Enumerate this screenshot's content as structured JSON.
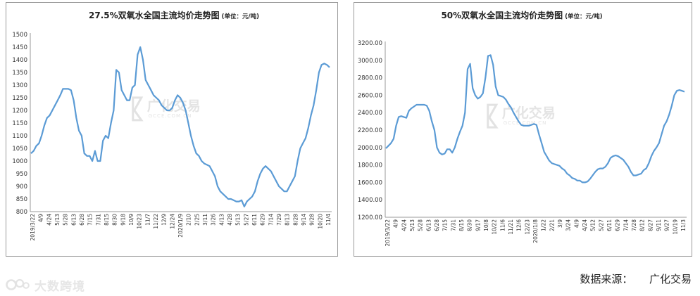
{
  "chart_data": [
    {
      "type": "line",
      "title": "27.5%双氧水全国主流均价走势图",
      "unit": "(单位：元/吨)",
      "color": "#5b9bd5",
      "ylim": [
        800,
        1500
      ],
      "yticks": [
        "800",
        "850",
        "900",
        "950",
        "1000",
        "1050",
        "1100",
        "1150",
        "1200",
        "1250",
        "1300",
        "1350",
        "1400",
        "1450",
        "1500"
      ],
      "xticks": [
        "2019/3/22",
        "4/9",
        "4/24",
        "5/13",
        "5/28",
        "6/13",
        "6/28",
        "7/15",
        "7/31",
        "8/15",
        "8/30",
        "9/18",
        "10/9",
        "10/23",
        "11/7",
        "11/22",
        "12/9",
        "12/24",
        "2020/1/9",
        "2/10",
        "2/25",
        "3/11",
        "3/26",
        "4/13",
        "4/28",
        "5/13",
        "5/27",
        "6/11",
        "6/29",
        "7/14",
        "7/29",
        "8/13",
        "8/28",
        "9/14",
        "9/28",
        "10/20",
        "11/4"
      ],
      "watermark": "广化交易",
      "watermark_sub": "GCCE.COM.CN",
      "values": [
        1030,
        1040,
        1060,
        1070,
        1100,
        1140,
        1170,
        1180,
        1200,
        1220,
        1240,
        1260,
        1285,
        1285,
        1285,
        1280,
        1240,
        1170,
        1120,
        1100,
        1030,
        1020,
        1020,
        1000,
        1040,
        1000,
        1000,
        1080,
        1100,
        1090,
        1150,
        1200,
        1360,
        1350,
        1280,
        1260,
        1240,
        1240,
        1290,
        1300,
        1420,
        1450,
        1400,
        1320,
        1300,
        1280,
        1260,
        1250,
        1240,
        1220,
        1210,
        1200,
        1200,
        1210,
        1240,
        1260,
        1250,
        1230,
        1200,
        1150,
        1100,
        1060,
        1030,
        1020,
        1000,
        990,
        985,
        980,
        960,
        940,
        900,
        880,
        870,
        860,
        850,
        850,
        845,
        840,
        840,
        845,
        820,
        840,
        850,
        860,
        880,
        920,
        950,
        970,
        980,
        970,
        960,
        940,
        920,
        900,
        890,
        880,
        880,
        900,
        920,
        940,
        1000,
        1050,
        1070,
        1090,
        1130,
        1180,
        1220,
        1280,
        1350,
        1380,
        1385,
        1380,
        1370
      ]
    },
    {
      "type": "line",
      "title": "50%双氧水全国主流均价走势图",
      "unit": "(单位：元/吨)",
      "color": "#5b9bd5",
      "ylim": [
        1200,
        3200
      ],
      "yticks": [
        "1200.00",
        "1400.00",
        "1600.00",
        "1800.00",
        "2000.00",
        "2200.00",
        "2400.00",
        "2600.00",
        "2800.00",
        "3000.00",
        "3200.00"
      ],
      "xticks": [
        "2019/3/22",
        "4/9",
        "4/24",
        "5/13",
        "5/28",
        "6/13",
        "6/28",
        "7/15",
        "7/31",
        "8/15",
        "8/30",
        "9/17",
        "10/8",
        "10/22",
        "11/6",
        "11/21",
        "12/6",
        "12/23",
        "2020/1/8",
        "1/22",
        "2/21",
        "3/9",
        "3/24",
        "4/9",
        "4/24",
        "5/12",
        "5/27",
        "6/11",
        "6/29",
        "7/14",
        "7/28",
        "8/12",
        "8/27",
        "9/11",
        "9/27",
        "10/19",
        "11/3"
      ],
      "watermark": "广化交易",
      "watermark_sub": "GCCE.COM.CN",
      "values": [
        1990,
        2020,
        2050,
        2100,
        2250,
        2350,
        2360,
        2350,
        2340,
        2420,
        2450,
        2470,
        2490,
        2490,
        2490,
        2490,
        2480,
        2420,
        2300,
        2200,
        2000,
        1940,
        1920,
        1930,
        1980,
        1980,
        1940,
        2000,
        2100,
        2180,
        2250,
        2400,
        2900,
        2960,
        2680,
        2600,
        2560,
        2580,
        2620,
        2800,
        3050,
        3060,
        2950,
        2700,
        2600,
        2590,
        2580,
        2550,
        2500,
        2460,
        2400,
        2350,
        2300,
        2260,
        2250,
        2250,
        2250,
        2260,
        2270,
        2260,
        2150,
        2050,
        1950,
        1900,
        1850,
        1820,
        1810,
        1800,
        1790,
        1760,
        1740,
        1700,
        1680,
        1650,
        1640,
        1620,
        1620,
        1600,
        1600,
        1610,
        1640,
        1680,
        1720,
        1750,
        1760,
        1760,
        1780,
        1820,
        1880,
        1900,
        1910,
        1900,
        1880,
        1860,
        1820,
        1780,
        1720,
        1680,
        1680,
        1690,
        1700,
        1740,
        1760,
        1820,
        1900,
        1960,
        2000,
        2050,
        2150,
        2250,
        2300,
        2380,
        2480,
        2600,
        2650,
        2660,
        2650,
        2640
      ]
    }
  ],
  "footer": {
    "logo_text": "大数跨境",
    "source_label": "数据来源：",
    "source_value": "广化交易"
  }
}
